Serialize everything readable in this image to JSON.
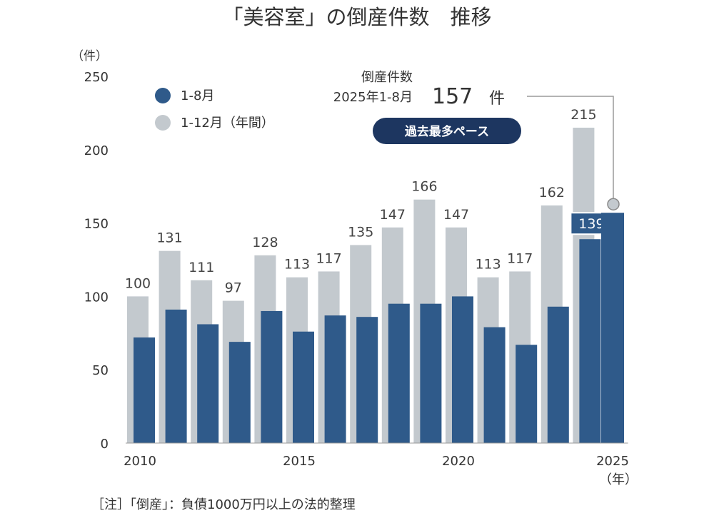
{
  "chart_data": {
    "type": "bar",
    "title": "「美容室」の倒産件数　推移",
    "y_unit": "（件）",
    "x_unit": "（年）",
    "ylim": [
      0,
      250
    ],
    "y_ticks": [
      "0",
      "50",
      "100",
      "150",
      "200",
      "250"
    ],
    "x_tick_labels": [
      {
        "year": 2010,
        "label": "2010"
      },
      {
        "year": 2015,
        "label": "2015"
      },
      {
        "year": 2020,
        "label": "2020"
      },
      {
        "year": 2025,
        "label": "2025"
      }
    ],
    "categories": [
      2010,
      2011,
      2012,
      2013,
      2014,
      2015,
      2016,
      2017,
      2018,
      2019,
      2020,
      2021,
      2022,
      2023,
      2024,
      2025
    ],
    "series": [
      {
        "name": "1-8月",
        "color": "#2f5a8a",
        "values": [
          72,
          91,
          81,
          69,
          90,
          76,
          87,
          86,
          95,
          95,
          100,
          79,
          67,
          93,
          139,
          157
        ]
      },
      {
        "name": "1-12月（年間）",
        "color": "#c3c9ce",
        "values": [
          100,
          131,
          111,
          97,
          128,
          113,
          117,
          135,
          147,
          166,
          147,
          113,
          117,
          162,
          215,
          null
        ]
      }
    ],
    "annual_labels": [
      "100",
      "131",
      "111",
      "97",
      "128",
      "113",
      "117",
      "135",
      "147",
      "166",
      "147",
      "113",
      "117",
      "162",
      "215",
      ""
    ],
    "highlight_label": "139",
    "legend": {
      "position": "top-left"
    },
    "callout": {
      "line1": "倒産件数",
      "line2": "2025年1-8月",
      "value": "157",
      "unit": "件",
      "badge": "過去最多ペース"
    },
    "note": "［注］「倒産」：負債1000万円以上の法的整理"
  }
}
